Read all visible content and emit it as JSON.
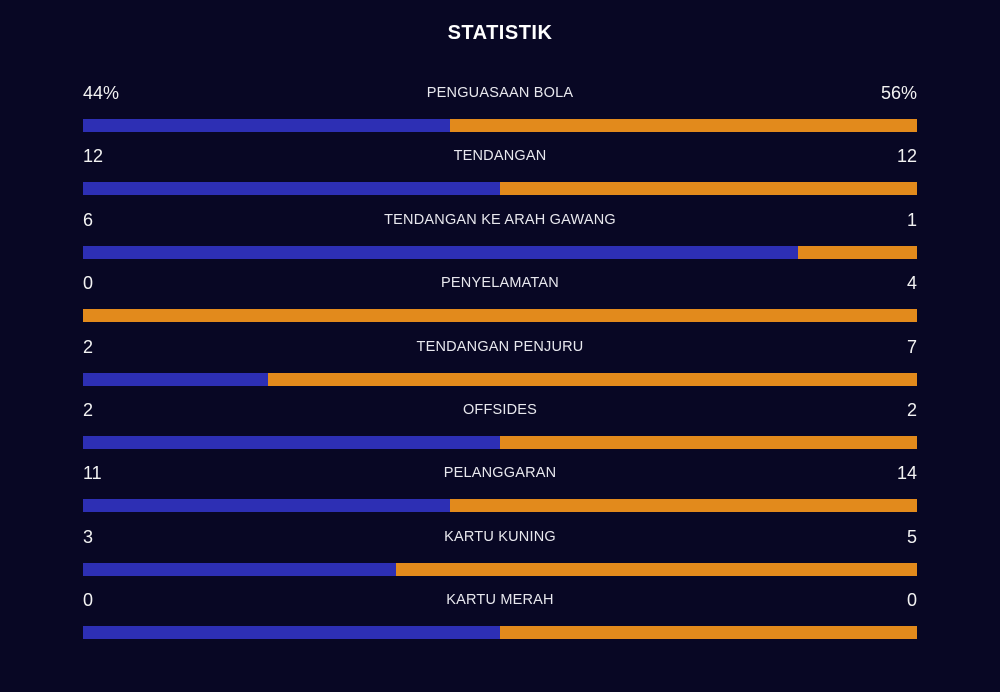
{
  "title": "STATISTIK",
  "colors": {
    "home": "#2d2fb4",
    "away": "#e28a1c",
    "background": "#080724"
  },
  "stats": [
    {
      "label": "PENGUASAAN BOLA",
      "home": "44%",
      "away": "56%",
      "home_share": 0.44
    },
    {
      "label": "TENDANGAN",
      "home": "12",
      "away": "12",
      "home_share": 0.5
    },
    {
      "label": "TENDANGAN KE ARAH GAWANG",
      "home": "6",
      "away": "1",
      "home_share": 0.857
    },
    {
      "label": "PENYELAMATAN",
      "home": "0",
      "away": "4",
      "home_share": 0.0
    },
    {
      "label": "TENDANGAN PENJURU",
      "home": "2",
      "away": "7",
      "home_share": 0.222
    },
    {
      "label": "OFFSIDES",
      "home": "2",
      "away": "2",
      "home_share": 0.5
    },
    {
      "label": "PELANGGARAN",
      "home": "11",
      "away": "14",
      "home_share": 0.44
    },
    {
      "label": "KARTU KUNING",
      "home": "3",
      "away": "5",
      "home_share": 0.375
    },
    {
      "label": "KARTU MERAH",
      "home": "0",
      "away": "0",
      "home_share": 0.5
    }
  ]
}
